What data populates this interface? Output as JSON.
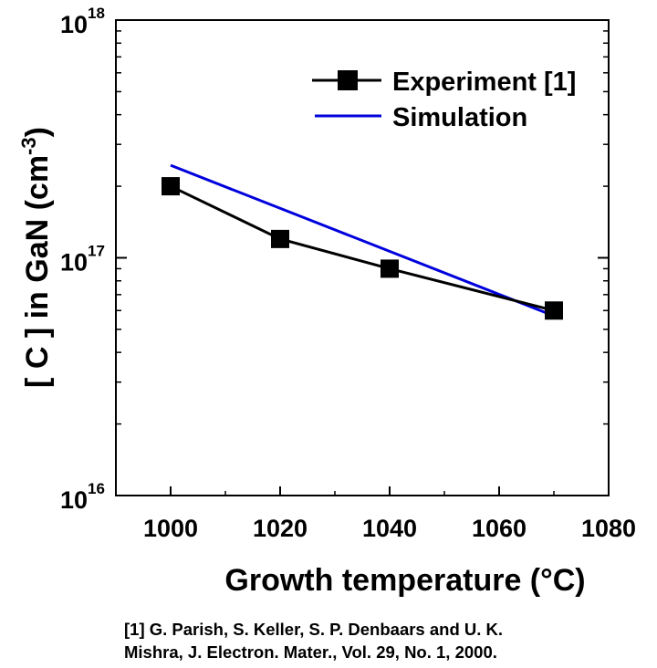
{
  "chart_data": {
    "type": "line",
    "xlabel": "Growth temperature (°C)",
    "ylabel_parts": [
      "[ C ] in GaN (cm",
      "-3",
      ")"
    ],
    "xlim": [
      990,
      1080
    ],
    "ylim": [
      1e+16,
      1e+18
    ],
    "yscale": "log",
    "x_ticks": [
      1000,
      1020,
      1040,
      1060,
      1080
    ],
    "y_ticks": [
      {
        "base": "10",
        "exp": "16",
        "value": 1e+16
      },
      {
        "base": "10",
        "exp": "17",
        "value": 1e+17
      },
      {
        "base": "10",
        "exp": "18",
        "value": 1e+18
      }
    ],
    "legend_position": "top-right",
    "series": [
      {
        "name": "Experiment [1]",
        "style": "line-square-marker",
        "color": "#000000",
        "x": [
          1000,
          1020,
          1040,
          1070
        ],
        "y": [
          2e+17,
          1.2e+17,
          9e+16,
          6e+16
        ]
      },
      {
        "name": "Simulation",
        "style": "line",
        "color": "#0000dd",
        "x": [
          1000,
          1070
        ],
        "y": [
          2.45e+17,
          5.7e+16
        ]
      }
    ]
  },
  "reference": {
    "line1": "[1]  G. Parish, S. Keller, S. P. Denbaars and U. K.",
    "line2": "Mishra, J. Electron. Mater., Vol. 29, No. 1, 2000."
  }
}
